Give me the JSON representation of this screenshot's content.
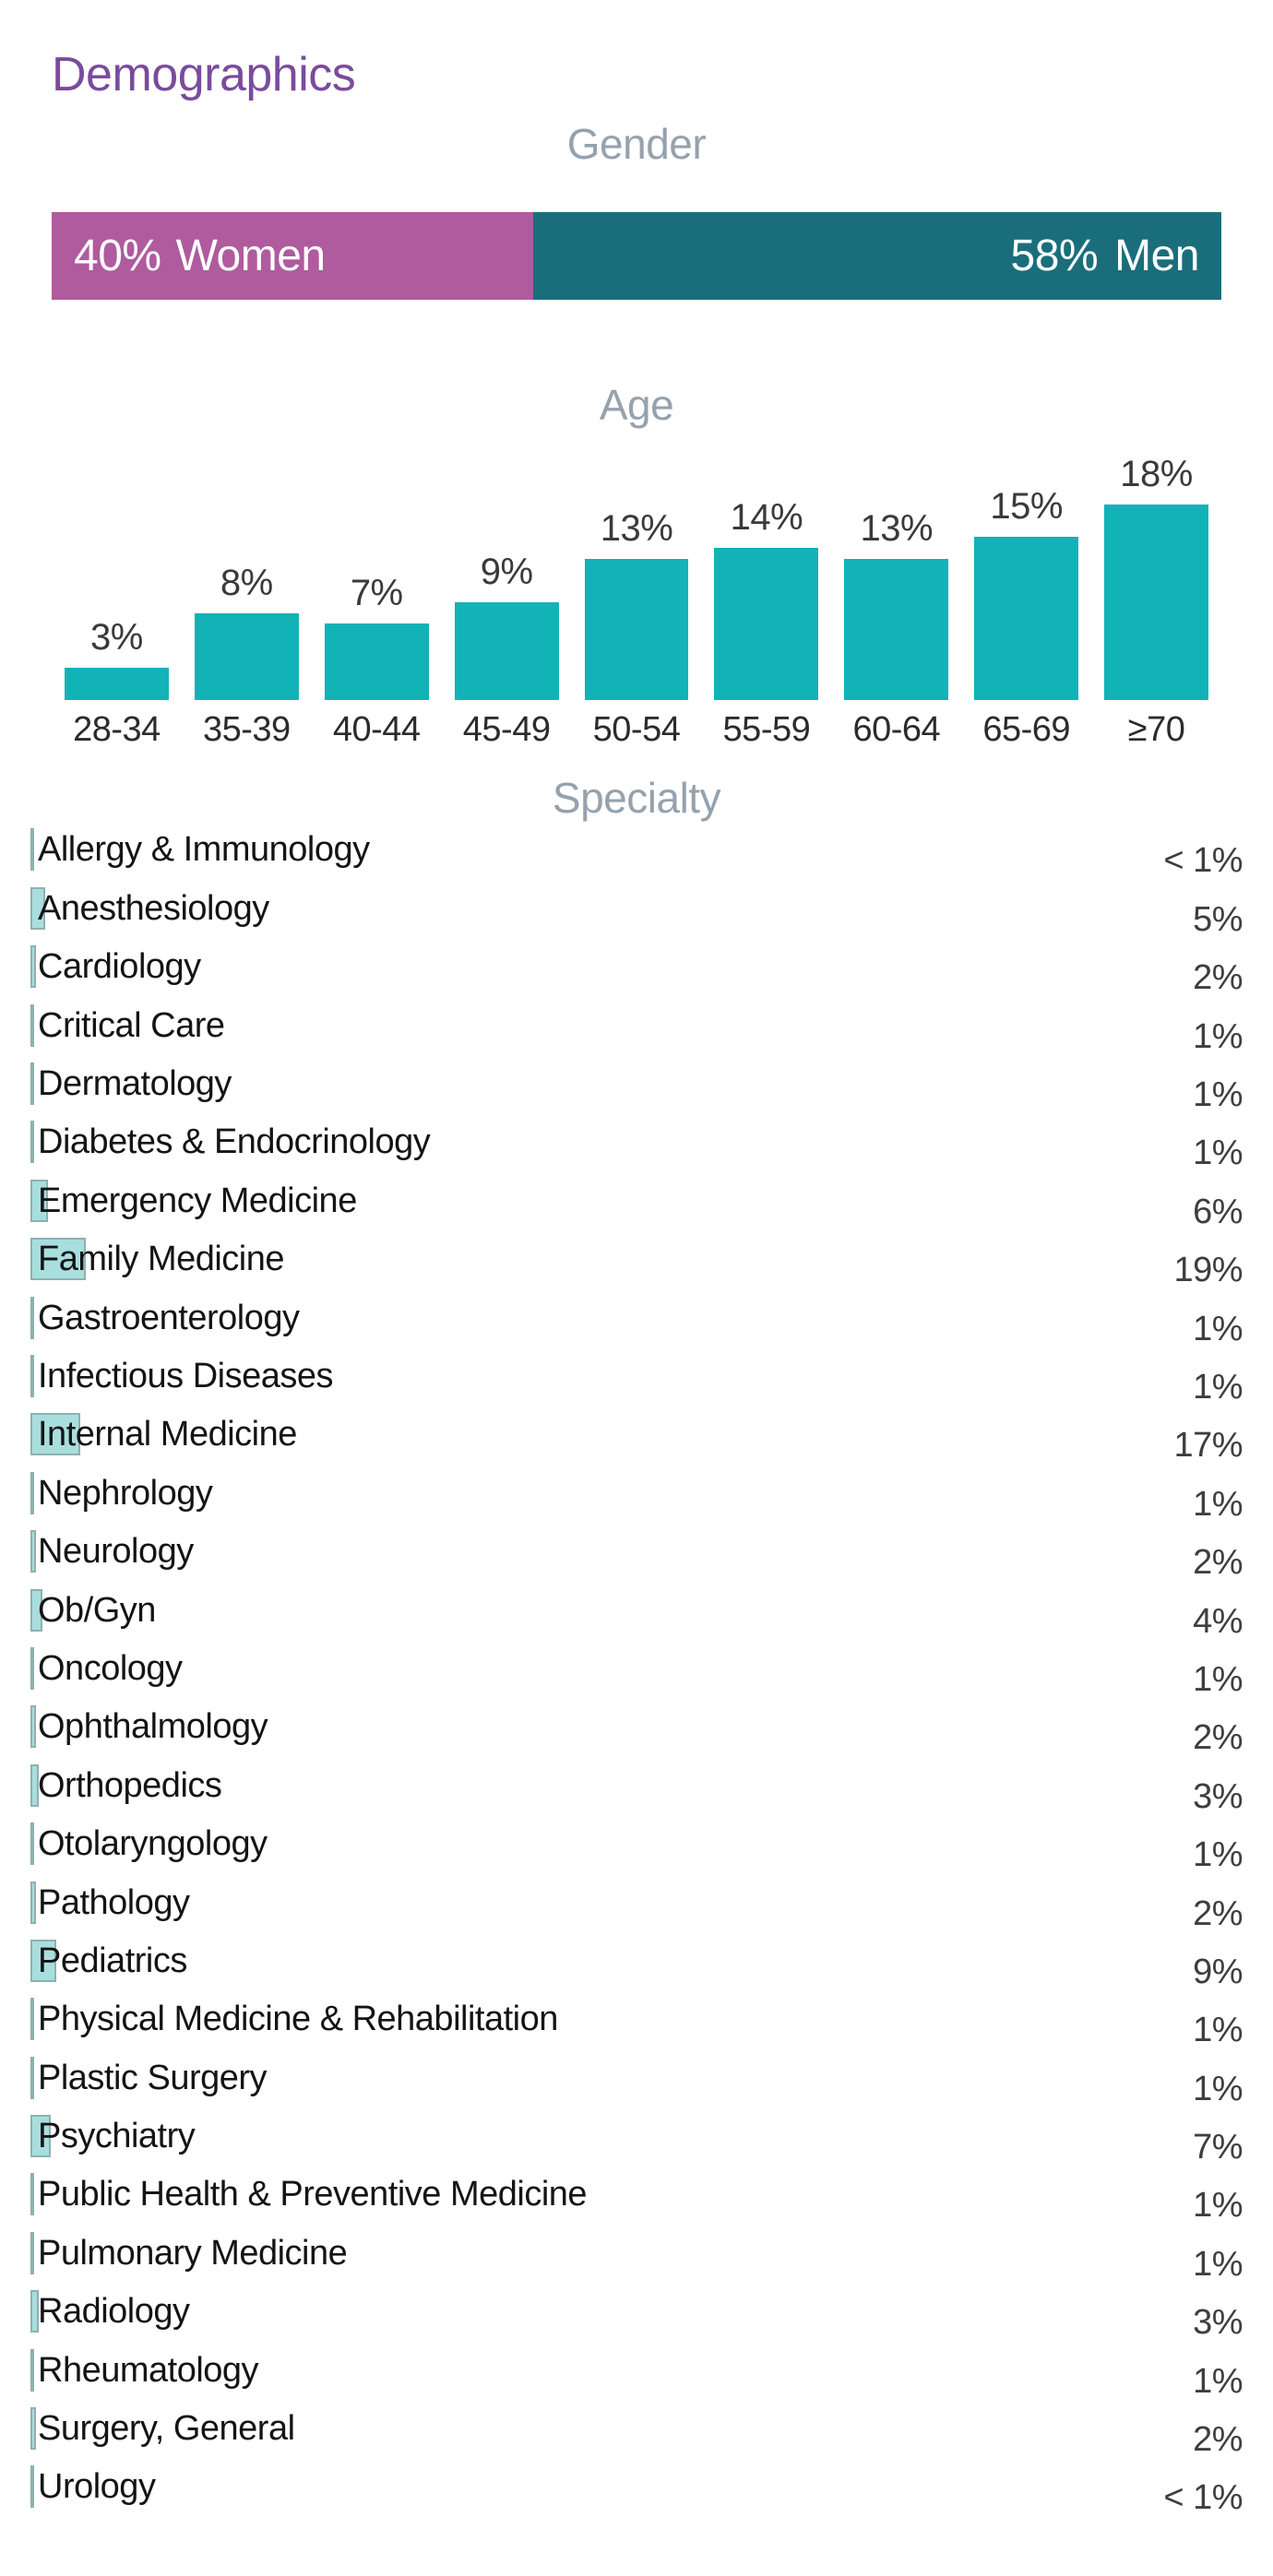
{
  "page": {
    "title": "Demographics"
  },
  "colors": {
    "title": "#7a4b9d",
    "section_header": "#95a2ae",
    "women": "#af5b9e",
    "men": "#1a6e7c",
    "age_bar": "#12b3b7",
    "specialty_bar_fill": "#a9dede",
    "specialty_bar_border": "#8fb0b0"
  },
  "chart_data": [
    {
      "type": "bar",
      "orientation": "horizontal-stacked",
      "title": "Gender",
      "unit": "percent",
      "series": [
        {
          "name": "Women",
          "value": 40,
          "label": "40%",
          "color": "#af5b9e"
        },
        {
          "name": "Men",
          "value": 58,
          "label": "58%",
          "color": "#1a6e7c"
        }
      ]
    },
    {
      "type": "bar",
      "orientation": "vertical",
      "title": "Age",
      "unit": "percent",
      "categories": [
        "28-34",
        "35-39",
        "40-44",
        "45-49",
        "50-54",
        "55-59",
        "60-64",
        "65-69",
        "≥70"
      ],
      "values": [
        3,
        8,
        7,
        9,
        13,
        14,
        13,
        15,
        18
      ],
      "value_labels": [
        "3%",
        "8%",
        "7%",
        "9%",
        "13%",
        "14%",
        "13%",
        "15%",
        "18%"
      ],
      "bar_color": "#12b3b7",
      "grid": false,
      "legend": false
    },
    {
      "type": "bar",
      "orientation": "horizontal",
      "title": "Specialty",
      "unit": "percent",
      "categories": [
        "Allergy & Immunology",
        "Anesthesiology",
        "Cardiology",
        "Critical Care",
        "Dermatology",
        "Diabetes & Endocrinology",
        "Emergency Medicine",
        "Family Medicine",
        "Gastroenterology",
        "Infectious Diseases",
        "Internal Medicine",
        "Nephrology",
        "Neurology",
        "Ob/Gyn",
        "Oncology",
        "Ophthalmology",
        "Orthopedics",
        "Otolaryngology",
        "Pathology",
        "Pediatrics",
        "Physical Medicine & Rehabilitation",
        "Plastic Surgery",
        "Psychiatry",
        "Public Health & Preventive Medicine",
        "Pulmonary Medicine",
        "Radiology",
        "Rheumatology",
        "Surgery, General",
        "Urology"
      ],
      "values": [
        0.5,
        5,
        2,
        1,
        1,
        1,
        6,
        19,
        1,
        1,
        17,
        1,
        2,
        4,
        1,
        2,
        3,
        1,
        2,
        9,
        1,
        1,
        7,
        1,
        1,
        3,
        1,
        2,
        0.5
      ],
      "value_labels": [
        "< 1%",
        "5%",
        "2%",
        "1%",
        "1%",
        "1%",
        "6%",
        "19%",
        "1%",
        "1%",
        "17%",
        "1%",
        "2%",
        "4%",
        "1%",
        "2%",
        "3%",
        "1%",
        "2%",
        "9%",
        "1%",
        "1%",
        "7%",
        "1%",
        "1%",
        "3%",
        "1%",
        "2%",
        "< 1%"
      ],
      "bar_fill": "#a9dede",
      "bar_border": "#8fb0b0",
      "grid": false,
      "legend": false
    }
  ]
}
